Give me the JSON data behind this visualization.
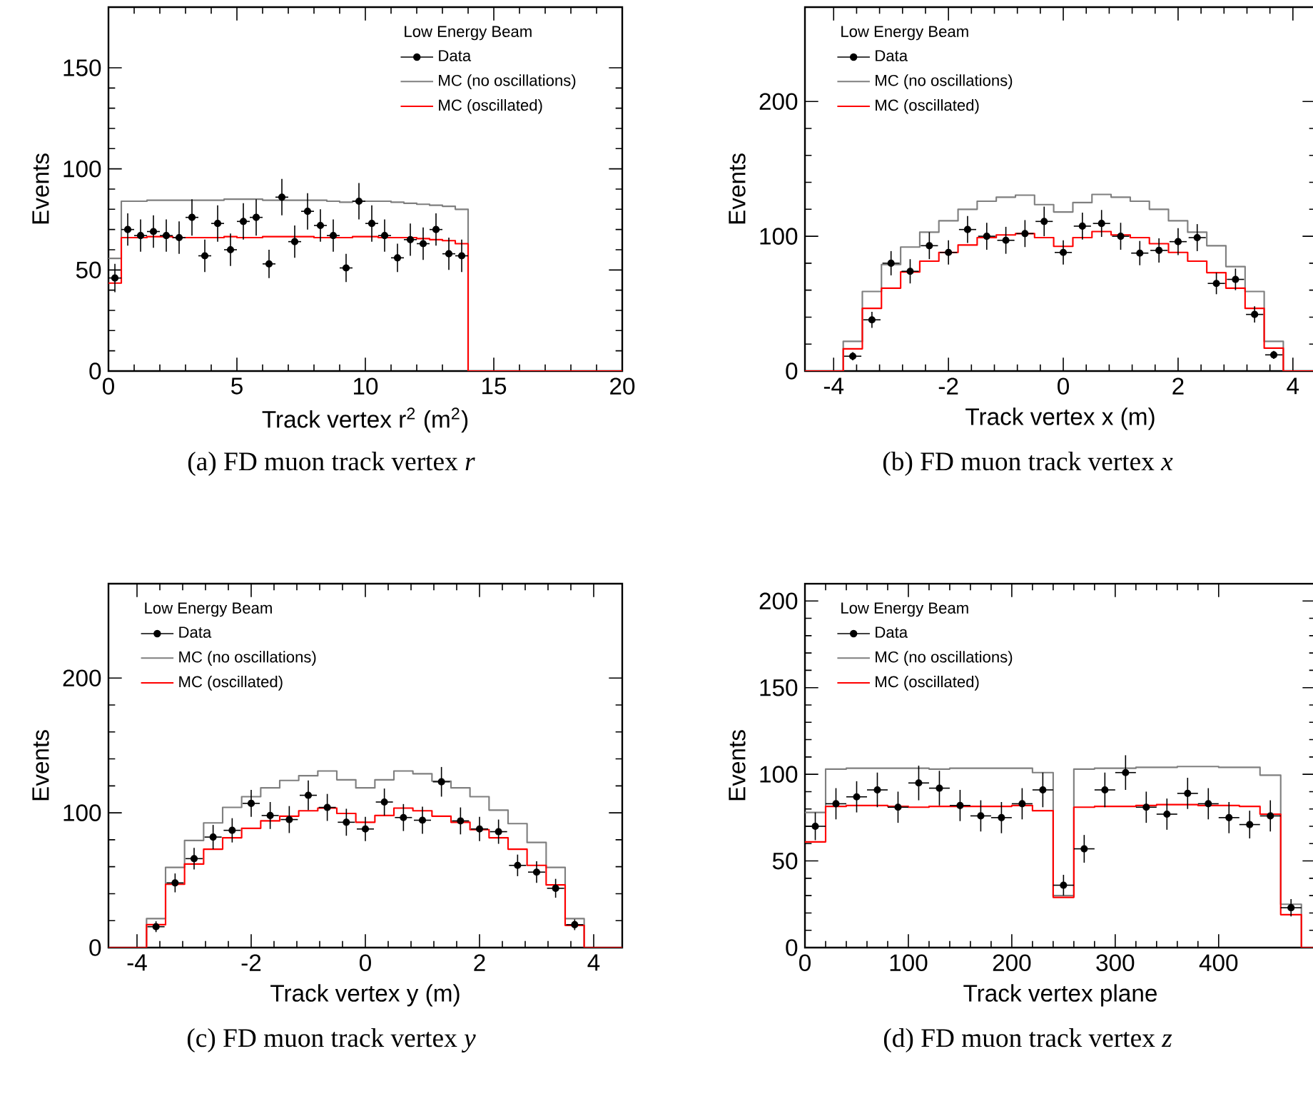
{
  "chart_data": [
    {
      "type": "step",
      "xlabel": "Track vertex r$^{2}$ (m$^{2}$)",
      "ylabel": "Events",
      "legend_title": "Low Energy Beam",
      "legend": "top right",
      "xlim": [
        0,
        20
      ],
      "ylim": [
        0,
        180
      ],
      "xticks": [
        0,
        5,
        10,
        15,
        20
      ],
      "yticks": [
        0,
        50,
        100,
        150
      ],
      "annotations": [
        "(a)  FD muon track vertex *r*"
      ],
      "series": [
        {
          "name": "Data",
          "type": "scatter",
          "marker": "circle",
          "color": "#000000",
          "x": [
            0.25,
            0.75,
            1.25,
            1.75,
            2.25,
            2.75,
            3.25,
            3.75,
            4.25,
            4.75,
            5.25,
            5.75,
            6.25,
            6.75,
            7.25,
            7.75,
            8.25,
            8.75,
            9.25,
            9.75,
            10.25,
            10.75,
            11.25,
            11.75,
            12.25,
            12.75,
            13.25,
            13.75
          ],
          "values": [
            46,
            70,
            67,
            69,
            67,
            66,
            76,
            57,
            73,
            60,
            74,
            76,
            53,
            86,
            64,
            79,
            72,
            67,
            51,
            84,
            73,
            67,
            56,
            65,
            63,
            70,
            58,
            57
          ],
          "errors": [
            7,
            8,
            8,
            8,
            8,
            8,
            9,
            8,
            9,
            8,
            9,
            9,
            7,
            9,
            8,
            9,
            8,
            8,
            7,
            9,
            9,
            8,
            7,
            8,
            8,
            8,
            8,
            8
          ],
          "xerrors": [
            0.25,
            0.25,
            0.25,
            0.25,
            0.25,
            0.25,
            0.25,
            0.25,
            0.25,
            0.25,
            0.25,
            0.25,
            0.25,
            0.25,
            0.25,
            0.25,
            0.25,
            0.25,
            0.25,
            0.25,
            0.25,
            0.25,
            0.25,
            0.25,
            0.25,
            0.25,
            0.25,
            0.25
          ]
        },
        {
          "name": "MC (no oscillations)",
          "color": "#7f7f7f",
          "x": [
            0,
            0.5,
            1,
            1.5,
            2,
            2.5,
            3,
            3.5,
            4,
            4.5,
            5,
            5.5,
            6,
            6.5,
            7,
            7.5,
            8,
            8.5,
            9,
            9.5,
            10,
            10.5,
            11,
            11.5,
            12,
            12.5,
            13,
            13.5,
            14,
            20
          ],
          "values": [
            55.7,
            84,
            84,
            84.5,
            84.5,
            84.5,
            84.5,
            84.5,
            84.5,
            85,
            85,
            85,
            84.5,
            84.5,
            84.5,
            84.5,
            84.5,
            84,
            83.5,
            84,
            84,
            84,
            83.5,
            83,
            82.5,
            82,
            81.5,
            80,
            0,
            0
          ]
        },
        {
          "name": "MC (oscillated)",
          "color": "#ff0000",
          "x": [
            0,
            0.5,
            1,
            1.5,
            2,
            2.5,
            3,
            3.5,
            4,
            4.5,
            5,
            5.5,
            6,
            6.5,
            7,
            7.5,
            8,
            8.5,
            9,
            9.5,
            10,
            10.5,
            11,
            11.5,
            12,
            12.5,
            13,
            13.5,
            14,
            20
          ],
          "values": [
            43.5,
            66,
            66,
            66.5,
            66.5,
            66,
            66,
            66,
            66,
            66.5,
            66,
            66,
            66.5,
            66.5,
            66.5,
            66.5,
            66,
            66,
            66,
            66.5,
            66.5,
            66,
            66,
            66,
            65.5,
            65,
            64.5,
            63,
            0,
            0
          ]
        }
      ]
    },
    {
      "type": "step",
      "xlabel": "Track vertex x (m)",
      "ylabel": "Events",
      "legend_title": "Low Energy Beam",
      "legend": "top left",
      "xlim": [
        -4.5,
        4.4
      ],
      "ylim": [
        0,
        270
      ],
      "xticks": [
        -4,
        -2,
        0,
        2,
        4
      ],
      "yticks": [
        0,
        100,
        200
      ],
      "annotations": [
        "(b)  FD muon track vertex *x*"
      ],
      "series": [
        {
          "name": "Data",
          "type": "scatter",
          "marker": "circle",
          "color": "#000000",
          "x": [
            -3.667,
            -3.333,
            -3,
            -2.667,
            -2.333,
            -2,
            -1.667,
            -1.333,
            -1,
            -0.667,
            -0.333,
            0,
            0.333,
            0.667,
            1,
            1.333,
            1.667,
            2,
            2.333,
            2.667,
            3,
            3.333,
            3.667
          ],
          "values": [
            11,
            38,
            80,
            74,
            93,
            88,
            105,
            100,
            97,
            102,
            111,
            88,
            107.5,
            109.5,
            100,
            87.5,
            89.5,
            96,
            99,
            65,
            68,
            42,
            12
          ],
          "errors": [
            3,
            6,
            9,
            9,
            10,
            9,
            10,
            10,
            10,
            10,
            11,
            9,
            10,
            10,
            10,
            9,
            9,
            10,
            10,
            8,
            8,
            6,
            3
          ],
          "xerrors": [
            0.15,
            0.15,
            0.15,
            0.15,
            0.15,
            0.15,
            0.15,
            0.15,
            0.15,
            0.15,
            0.15,
            0.15,
            0.15,
            0.15,
            0.15,
            0.15,
            0.15,
            0.15,
            0.15,
            0.15,
            0.15,
            0.15,
            0.15
          ]
        },
        {
          "name": "MC (no oscillations)",
          "color": "#7f7f7f",
          "x": [
            -4.5,
            -3.833,
            -3.5,
            -3.167,
            -2.833,
            -2.5,
            -2.167,
            -1.833,
            -1.5,
            -1.167,
            -0.833,
            -0.5,
            -0.167,
            0.167,
            0.5,
            0.833,
            1.167,
            1.5,
            1.833,
            2.167,
            2.5,
            2.833,
            3.167,
            3.5,
            3.833,
            4.4
          ],
          "values": [
            0,
            22,
            59,
            79,
            92,
            103,
            111.5,
            120,
            126,
            129,
            130.5,
            123.5,
            118,
            125,
            131,
            129,
            126,
            120,
            111.5,
            103,
            93,
            77.5,
            59,
            22,
            0,
            0
          ]
        },
        {
          "name": "MC (oscillated)",
          "color": "#ff0000",
          "x": [
            -4.5,
            -3.833,
            -3.5,
            -3.167,
            -2.833,
            -2.5,
            -2.167,
            -1.833,
            -1.5,
            -1.167,
            -0.833,
            -0.5,
            -0.167,
            0.167,
            0.5,
            0.833,
            1.167,
            1.5,
            1.833,
            2.167,
            2.5,
            2.833,
            3.167,
            3.5,
            3.833,
            4.4
          ],
          "values": [
            0,
            16.5,
            46.5,
            61.5,
            73.5,
            81.5,
            88,
            93.5,
            99,
            101,
            102,
            99,
            92.5,
            99,
            103.5,
            101,
            99,
            94.5,
            88,
            81.5,
            73,
            61.5,
            46.5,
            17,
            0,
            0
          ]
        }
      ]
    },
    {
      "type": "step",
      "xlabel": "Track vertex y (m)",
      "ylabel": "Events",
      "legend_title": "Low Energy Beam",
      "legend": "top left",
      "xlim": [
        -4.5,
        4.5
      ],
      "ylim": [
        0,
        270
      ],
      "xticks": [
        -4,
        -2,
        0,
        2,
        4
      ],
      "yticks": [
        0,
        100,
        200
      ],
      "annotations": [
        "(c)  FD muon track vertex *y*"
      ],
      "series": [
        {
          "name": "Data",
          "type": "scatter",
          "marker": "circle",
          "color": "#000000",
          "x": [
            -3.667,
            -3.333,
            -3,
            -2.667,
            -2.333,
            -2,
            -1.667,
            -1.333,
            -1,
            -0.667,
            -0.333,
            0,
            0.333,
            0.667,
            1,
            1.333,
            1.667,
            2,
            2.333,
            2.667,
            3,
            3.333,
            3.667
          ],
          "values": [
            15.5,
            48,
            66,
            82,
            87,
            107,
            98,
            95,
            113,
            104,
            93,
            88,
            108,
            96.5,
            94.5,
            123,
            94,
            88,
            86,
            61,
            56,
            44,
            17
          ],
          "errors": [
            4,
            7,
            8,
            9,
            9,
            10,
            10,
            10,
            11,
            10,
            10,
            9,
            10,
            10,
            10,
            11,
            10,
            9,
            9,
            8,
            8,
            7,
            4
          ],
          "xerrors": [
            0.15,
            0.15,
            0.15,
            0.15,
            0.15,
            0.15,
            0.15,
            0.15,
            0.15,
            0.15,
            0.15,
            0.15,
            0.15,
            0.15,
            0.15,
            0.15,
            0.15,
            0.15,
            0.15,
            0.15,
            0.15,
            0.15,
            0.15
          ]
        },
        {
          "name": "MC (no oscillations)",
          "color": "#7f7f7f",
          "x": [
            -4.5,
            -3.833,
            -3.5,
            -3.167,
            -2.833,
            -2.5,
            -2.167,
            -1.833,
            -1.5,
            -1.167,
            -0.833,
            -0.5,
            -0.167,
            0.167,
            0.5,
            0.833,
            1.167,
            1.5,
            1.833,
            2.167,
            2.5,
            2.833,
            3.167,
            3.5,
            3.833,
            4.5
          ],
          "values": [
            0,
            21.5,
            59.5,
            79.5,
            92.5,
            104,
            112,
            118.5,
            124,
            127.5,
            131,
            124.5,
            118.5,
            124.5,
            131,
            129,
            123.5,
            118.5,
            112,
            102,
            92,
            78,
            59.5,
            21.5,
            0,
            0
          ]
        },
        {
          "name": "MC (oscillated)",
          "color": "#ff0000",
          "x": [
            -4.5,
            -3.833,
            -3.5,
            -3.167,
            -2.833,
            -2.5,
            -2.167,
            -1.833,
            -1.5,
            -1.167,
            -0.833,
            -0.5,
            -0.167,
            0.167,
            0.5,
            0.833,
            1.167,
            1.5,
            1.833,
            2.167,
            2.5,
            2.833,
            3.167,
            3.5,
            3.833,
            4.5
          ],
          "values": [
            0,
            17,
            47,
            62,
            73,
            81.5,
            88.5,
            94,
            97.5,
            101.5,
            103.5,
            99.5,
            93,
            98,
            103.5,
            101.5,
            97.5,
            93,
            87.5,
            81.5,
            73,
            61,
            46.5,
            16.5,
            0,
            0
          ]
        }
      ]
    },
    {
      "type": "step",
      "xlabel": "Track vertex plane",
      "ylabel": "Events",
      "legend_title": "Low Energy Beam",
      "legend": "top left",
      "xlim": [
        0,
        494
      ],
      "ylim": [
        0,
        210
      ],
      "xticks": [
        0,
        100,
        200,
        300,
        400
      ],
      "yticks": [
        0,
        50,
        100,
        150,
        200
      ],
      "annotations": [
        "(d)  FD muon track vertex *z*"
      ],
      "series": [
        {
          "name": "Data",
          "type": "scatter",
          "marker": "circle",
          "color": "#000000",
          "x": [
            10,
            30,
            50,
            70,
            90,
            110,
            130,
            150,
            170,
            190,
            210,
            230,
            250,
            270,
            290,
            310,
            330,
            350,
            370,
            390,
            410,
            430,
            450,
            470
          ],
          "values": [
            70,
            83,
            87,
            91,
            81,
            95,
            92,
            82,
            76,
            75,
            83,
            91,
            36,
            57,
            91,
            101,
            81,
            77,
            89,
            83,
            75,
            71,
            76,
            23
          ],
          "errors": [
            8,
            9,
            9,
            10,
            9,
            10,
            10,
            9,
            9,
            9,
            9,
            10,
            6,
            8,
            10,
            10,
            9,
            9,
            9,
            9,
            9,
            8,
            9,
            5
          ],
          "xerrors": [
            10,
            10,
            10,
            10,
            10,
            10,
            10,
            10,
            10,
            10,
            10,
            10,
            10,
            10,
            10,
            10,
            10,
            10,
            10,
            10,
            10,
            10,
            10,
            10
          ]
        },
        {
          "name": "MC (no oscillations)",
          "color": "#7f7f7f",
          "x": [
            0,
            20,
            40,
            60,
            80,
            100,
            120,
            140,
            160,
            180,
            200,
            220,
            240,
            260,
            280,
            300,
            320,
            340,
            360,
            380,
            400,
            420,
            440,
            460,
            480,
            494
          ],
          "values": [
            78,
            103,
            103.5,
            103.5,
            103.5,
            103.5,
            103,
            103.5,
            103.5,
            103.5,
            103.5,
            101,
            30,
            103,
            103.5,
            103.5,
            104,
            104,
            104.5,
            104.5,
            104,
            104,
            99.5,
            25,
            0,
            0
          ]
        },
        {
          "name": "MC (oscillated)",
          "color": "#ff0000",
          "x": [
            0,
            20,
            40,
            60,
            80,
            100,
            120,
            140,
            160,
            180,
            200,
            220,
            240,
            260,
            280,
            300,
            320,
            340,
            360,
            380,
            400,
            420,
            440,
            460,
            480,
            494
          ],
          "values": [
            61,
            81.5,
            82,
            82,
            81.5,
            81,
            81.5,
            81.5,
            81.5,
            81.5,
            82,
            79,
            29,
            81,
            81.5,
            81.5,
            82,
            82.5,
            82.5,
            82,
            82,
            81.5,
            77,
            19,
            0,
            0
          ]
        }
      ]
    }
  ]
}
